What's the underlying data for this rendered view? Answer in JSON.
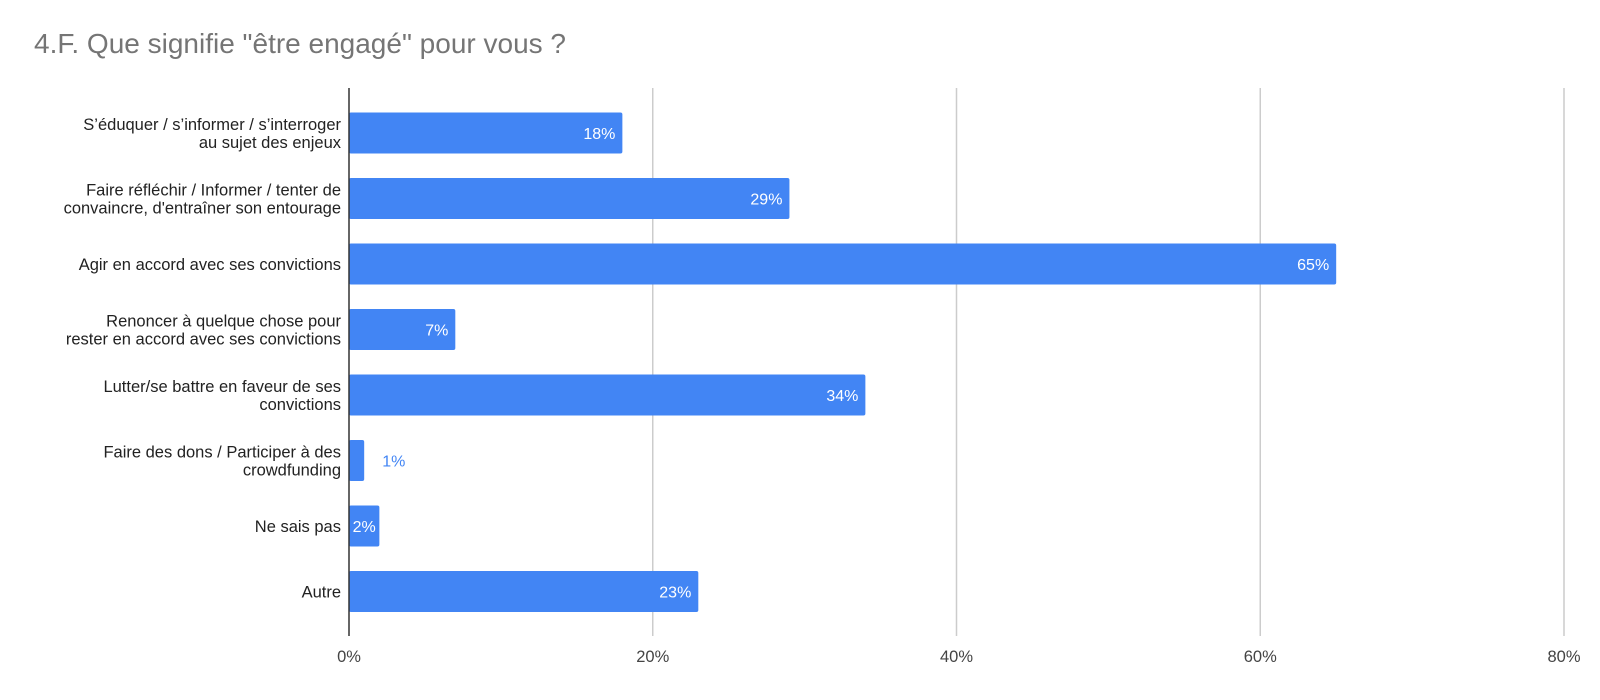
{
  "chart_data": {
    "type": "bar",
    "orientation": "horizontal",
    "title": "4.F. Que signifie \"être engagé\" pour vous ?",
    "xlabel": "",
    "ylabel": "",
    "categories": [
      [
        "S’éduquer / s’informer / s’interroger",
        "au sujet des enjeux"
      ],
      [
        "Faire réfléchir / Informer / tenter de",
        "convaincre, d'entraîner son entourage"
      ],
      [
        "Agir en accord avec ses convictions"
      ],
      [
        "Renoncer à quelque chose pour",
        "rester en accord avec ses convictions"
      ],
      [
        "Lutter/se battre en faveur de ses",
        "convictions"
      ],
      [
        "Faire des dons / Participer à des",
        "crowdfunding"
      ],
      [
        "Ne sais pas"
      ],
      [
        "Autre"
      ]
    ],
    "values": [
      18,
      29,
      65,
      7,
      34,
      1,
      2,
      23
    ],
    "value_labels": [
      "18%",
      "29%",
      "65%",
      "7%",
      "34%",
      "1%",
      "2%",
      "23%"
    ],
    "xlim": [
      0,
      80
    ],
    "x_ticks": [
      0,
      20,
      40,
      60,
      80
    ],
    "x_tick_labels": [
      "0%",
      "20%",
      "40%",
      "60%",
      "80%"
    ],
    "grid": true,
    "legend": "none",
    "colors": {
      "bar": "#4285f4",
      "label_inside": "#ffffff",
      "label_outside": "#4285f4",
      "grid": "#cccccc",
      "axis": "#333333"
    }
  }
}
